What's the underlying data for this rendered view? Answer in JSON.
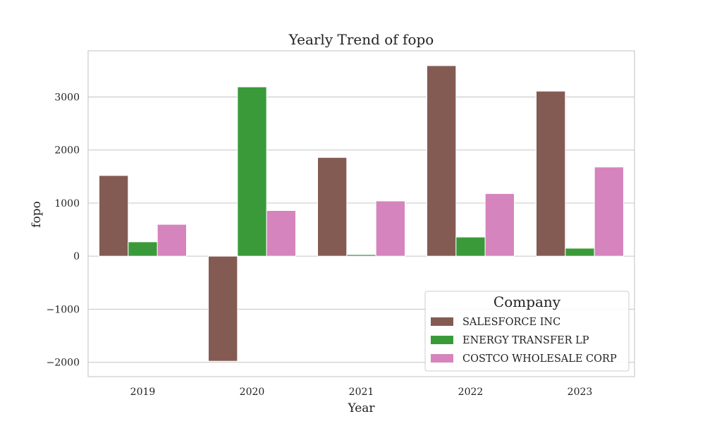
{
  "chart_data": {
    "type": "bar",
    "title": "Yearly Trend of fopo",
    "xlabel": "Year",
    "ylabel": "fopo",
    "categories": [
      "2019",
      "2020",
      "2021",
      "2022",
      "2023"
    ],
    "series": [
      {
        "name": "SALESFORCE INC",
        "color": "#845b53",
        "values": [
          1520,
          -1980,
          1860,
          3590,
          3110
        ]
      },
      {
        "name": "ENERGY TRANSFER LP",
        "color": "#3a9a3a",
        "values": [
          270,
          3190,
          30,
          360,
          150
        ]
      },
      {
        "name": "COSTCO WHOLESALE CORP",
        "color": "#d684bd",
        "values": [
          600,
          860,
          1040,
          1180,
          1680
        ]
      }
    ],
    "ylim": [
      -2270,
      3870
    ],
    "yticks": [
      -2000,
      -1000,
      0,
      1000,
      2000,
      3000
    ],
    "ytick_labels": [
      "−2000",
      "−1000",
      "0",
      "1000",
      "2000",
      "3000"
    ],
    "grid": true,
    "legend": {
      "title": "Company",
      "placement": "lower-right"
    }
  }
}
